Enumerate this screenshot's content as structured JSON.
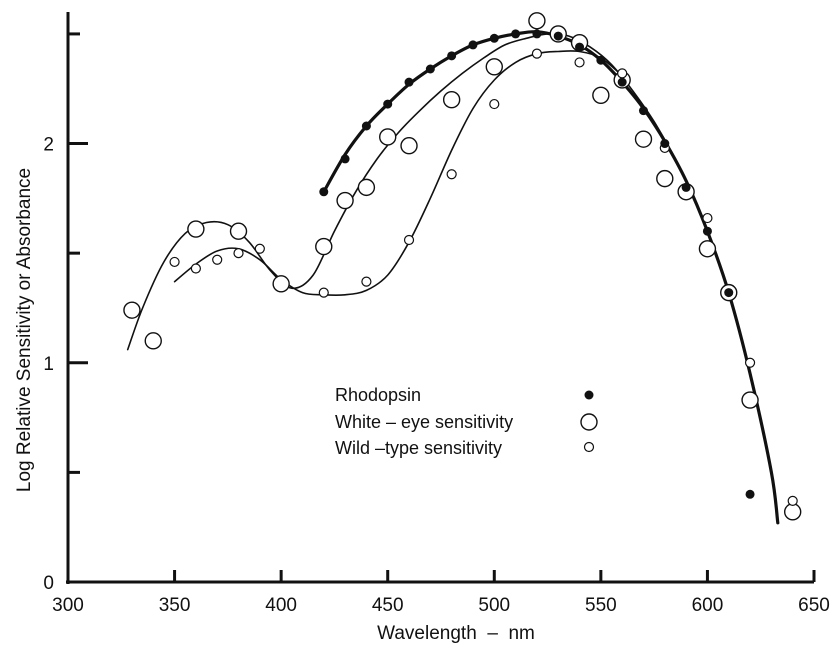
{
  "chart_data": {
    "type": "scatter",
    "title": "",
    "xlabel": "Wavelength  –  nm",
    "ylabel": "Log Relative Sensitivity or Absorbance",
    "xlim": [
      300,
      650
    ],
    "ylim": [
      0,
      2.6
    ],
    "x_ticks": [
      300,
      350,
      400,
      450,
      500,
      550,
      600,
      650
    ],
    "x_tick_labels": [
      "300",
      "350",
      "400",
      "450",
      "500",
      "550",
      "600",
      "650"
    ],
    "y_ticks": [
      0,
      1,
      2
    ],
    "y_tick_labels": [
      "0",
      "1",
      "2"
    ],
    "y_minor_ticks": [
      0.5,
      1.5,
      2.5
    ],
    "grid": false,
    "legend_placement": "center-right",
    "series": [
      {
        "name": "Rhodopsin",
        "marker": "filled-dot",
        "points": [
          [
            420,
            1.78
          ],
          [
            430,
            1.93
          ],
          [
            440,
            2.08
          ],
          [
            450,
            2.18
          ],
          [
            460,
            2.28
          ],
          [
            470,
            2.34
          ],
          [
            480,
            2.4
          ],
          [
            490,
            2.45
          ],
          [
            500,
            2.48
          ],
          [
            510,
            2.5
          ],
          [
            520,
            2.5
          ],
          [
            530,
            2.49
          ],
          [
            540,
            2.44
          ],
          [
            550,
            2.38
          ],
          [
            560,
            2.28
          ],
          [
            570,
            2.15
          ],
          [
            580,
            2.0
          ],
          [
            590,
            1.8
          ],
          [
            600,
            1.6
          ],
          [
            610,
            1.32
          ],
          [
            620,
            0.4
          ]
        ],
        "curve": [
          [
            420,
            1.78
          ],
          [
            430,
            1.95
          ],
          [
            440,
            2.08
          ],
          [
            450,
            2.18
          ],
          [
            460,
            2.27
          ],
          [
            470,
            2.34
          ],
          [
            480,
            2.4
          ],
          [
            490,
            2.45
          ],
          [
            500,
            2.48
          ],
          [
            510,
            2.5
          ],
          [
            520,
            2.51
          ],
          [
            530,
            2.49
          ],
          [
            540,
            2.45
          ],
          [
            550,
            2.38
          ],
          [
            560,
            2.28
          ],
          [
            570,
            2.16
          ],
          [
            580,
            2.01
          ],
          [
            590,
            1.83
          ],
          [
            600,
            1.6
          ],
          [
            610,
            1.32
          ],
          [
            620,
            0.95
          ],
          [
            630,
            0.5
          ],
          [
            633,
            0.27
          ]
        ]
      },
      {
        "name": "White – eye sensitivity",
        "marker": "large-open-circle",
        "points": [
          [
            330,
            1.24
          ],
          [
            340,
            1.1
          ],
          [
            360,
            1.61
          ],
          [
            380,
            1.6
          ],
          [
            400,
            1.36
          ],
          [
            420,
            1.53
          ],
          [
            430,
            1.74
          ],
          [
            440,
            1.8
          ],
          [
            450,
            2.03
          ],
          [
            460,
            1.99
          ],
          [
            480,
            2.2
          ],
          [
            500,
            2.35
          ],
          [
            520,
            2.56
          ],
          [
            530,
            2.5
          ],
          [
            540,
            2.46
          ],
          [
            550,
            2.22
          ],
          [
            560,
            2.29
          ],
          [
            570,
            2.02
          ],
          [
            580,
            1.84
          ],
          [
            590,
            1.78
          ],
          [
            600,
            1.52
          ],
          [
            610,
            1.32
          ],
          [
            620,
            0.83
          ],
          [
            640,
            0.32
          ]
        ],
        "curve": [
          [
            328,
            1.06
          ],
          [
            335,
            1.25
          ],
          [
            345,
            1.46
          ],
          [
            355,
            1.59
          ],
          [
            365,
            1.64
          ],
          [
            375,
            1.63
          ],
          [
            385,
            1.55
          ],
          [
            395,
            1.42
          ],
          [
            405,
            1.34
          ],
          [
            415,
            1.4
          ],
          [
            425,
            1.6
          ],
          [
            435,
            1.78
          ],
          [
            445,
            1.93
          ],
          [
            455,
            2.05
          ],
          [
            465,
            2.15
          ],
          [
            475,
            2.24
          ],
          [
            485,
            2.32
          ],
          [
            495,
            2.39
          ],
          [
            505,
            2.45
          ],
          [
            515,
            2.48
          ],
          [
            525,
            2.5
          ],
          [
            535,
            2.49
          ],
          [
            545,
            2.44
          ],
          [
            555,
            2.36
          ],
          [
            565,
            2.24
          ],
          [
            575,
            2.1
          ],
          [
            585,
            1.93
          ]
        ]
      },
      {
        "name": "Wild –type sensitivity",
        "marker": "small-open-circle",
        "points": [
          [
            350,
            1.46
          ],
          [
            360,
            1.43
          ],
          [
            370,
            1.47
          ],
          [
            380,
            1.5
          ],
          [
            390,
            1.52
          ],
          [
            420,
            1.32
          ],
          [
            440,
            1.37
          ],
          [
            460,
            1.56
          ],
          [
            480,
            1.86
          ],
          [
            500,
            2.18
          ],
          [
            520,
            2.41
          ],
          [
            540,
            2.37
          ],
          [
            560,
            2.32
          ],
          [
            580,
            1.98
          ],
          [
            600,
            1.66
          ],
          [
            620,
            1.0
          ],
          [
            640,
            0.37
          ]
        ],
        "curve": [
          [
            350,
            1.37
          ],
          [
            360,
            1.45
          ],
          [
            370,
            1.51
          ],
          [
            380,
            1.52
          ],
          [
            390,
            1.47
          ],
          [
            400,
            1.38
          ],
          [
            410,
            1.32
          ],
          [
            420,
            1.31
          ],
          [
            430,
            1.31
          ],
          [
            440,
            1.33
          ],
          [
            450,
            1.4
          ],
          [
            460,
            1.55
          ],
          [
            470,
            1.75
          ],
          [
            480,
            1.97
          ],
          [
            490,
            2.16
          ],
          [
            500,
            2.29
          ],
          [
            510,
            2.37
          ],
          [
            520,
            2.41
          ],
          [
            530,
            2.42
          ],
          [
            540,
            2.42
          ],
          [
            550,
            2.39
          ],
          [
            560,
            2.31
          ]
        ]
      }
    ]
  }
}
